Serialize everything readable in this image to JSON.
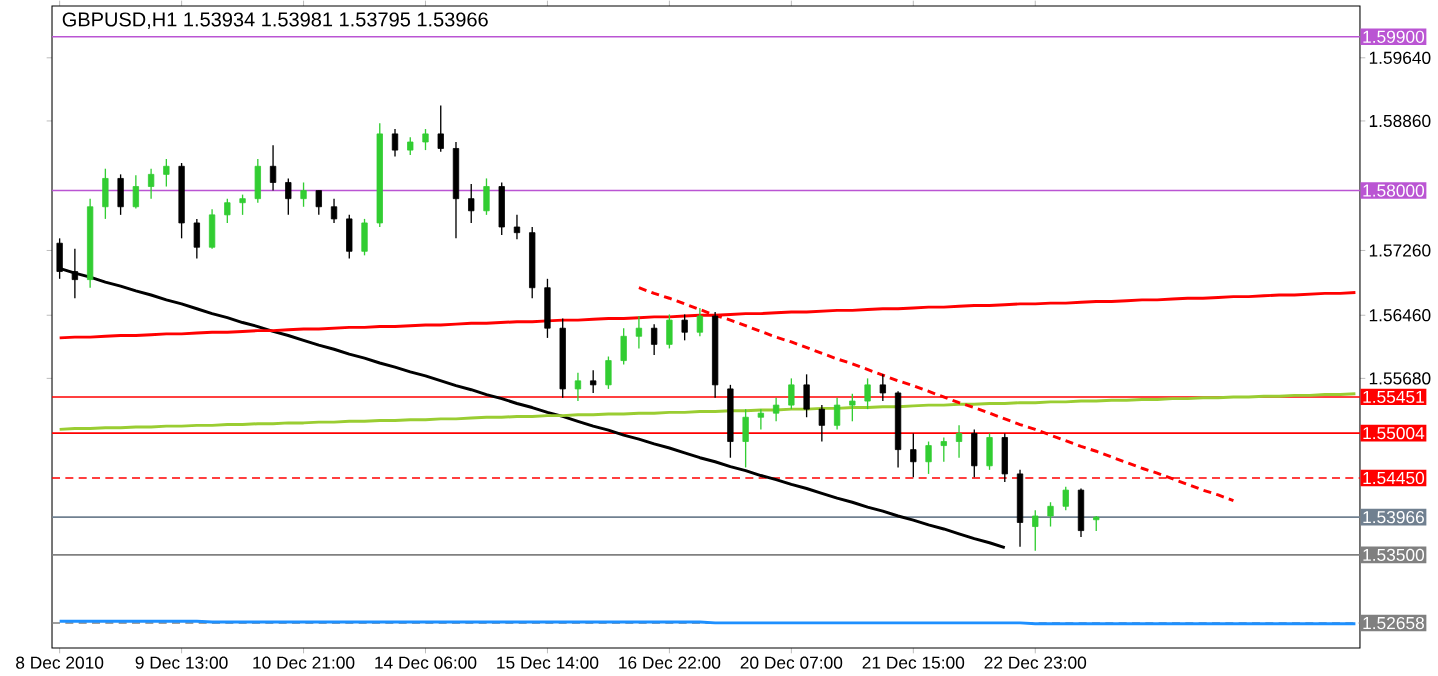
{
  "chart_data": {
    "type": "candlestick",
    "title": "GBPUSD,H1  1.53934 1.53981 1.53795 1.53966",
    "categories": [
      "8 Dec 2010",
      null,
      null,
      null,
      null,
      null,
      null,
      null,
      "9 Dec 13:00",
      null,
      null,
      null,
      null,
      null,
      null,
      null,
      "10 Dec 21:00",
      null,
      null,
      null,
      null,
      null,
      null,
      null,
      "14 Dec 06:00",
      null,
      null,
      null,
      null,
      null,
      null,
      null,
      "15 Dec 14:00",
      null,
      null,
      null,
      null,
      null,
      null,
      null,
      "16 Dec 22:00",
      null,
      null,
      null,
      null,
      null,
      null,
      null,
      "20 Dec 07:00",
      null,
      null,
      null,
      null,
      null,
      null,
      null,
      "21 Dec 15:00",
      null,
      null,
      null,
      null,
      null,
      null,
      null,
      "22 Dec 23:00",
      null,
      null,
      null,
      null,
      null,
      null,
      null,
      null,
      null,
      null,
      null,
      null,
      null,
      null,
      null,
      null,
      null,
      null,
      null,
      null,
      null
    ],
    "ohlc": [
      [
        1.5735,
        1.5741,
        1.5691,
        1.57
      ],
      [
        1.57,
        1.5728,
        1.5667,
        1.569
      ],
      [
        1.569,
        1.579,
        1.568,
        1.578
      ],
      [
        1.578,
        1.5827,
        1.5765,
        1.5815
      ],
      [
        1.5815,
        1.582,
        1.577,
        1.578
      ],
      [
        1.578,
        1.5819,
        1.5778,
        1.5805
      ],
      [
        1.5805,
        1.5827,
        1.579,
        1.582
      ],
      [
        1.582,
        1.5839,
        1.5805,
        1.583
      ],
      [
        1.583,
        1.5834,
        1.5741,
        1.576
      ],
      [
        1.576,
        1.5765,
        1.5716,
        1.573
      ],
      [
        1.573,
        1.5777,
        1.5728,
        1.577
      ],
      [
        1.577,
        1.579,
        1.576,
        1.5785
      ],
      [
        1.5785,
        1.5795,
        1.577,
        1.579
      ],
      [
        1.579,
        1.5839,
        1.5785,
        1.583
      ],
      [
        1.583,
        1.5856,
        1.58,
        1.581
      ],
      [
        1.581,
        1.5815,
        1.577,
        1.579
      ],
      [
        1.579,
        1.581,
        1.578,
        1.58
      ],
      [
        1.58,
        1.58,
        1.577,
        1.578
      ],
      [
        1.578,
        1.579,
        1.576,
        1.5765
      ],
      [
        1.5765,
        1.577,
        1.5716,
        1.5725
      ],
      [
        1.5725,
        1.5765,
        1.572,
        1.576
      ],
      [
        1.576,
        1.5883,
        1.5755,
        1.587
      ],
      [
        1.587,
        1.5876,
        1.5842,
        1.585
      ],
      [
        1.585,
        1.5866,
        1.5844,
        1.586
      ],
      [
        1.586,
        1.5876,
        1.585,
        1.587
      ],
      [
        1.587,
        1.5905,
        1.5848,
        1.5852
      ],
      [
        1.5852,
        1.586,
        1.5741,
        1.579
      ],
      [
        1.579,
        1.5808,
        1.576,
        1.5775
      ],
      [
        1.5775,
        1.5815,
        1.577,
        1.5805
      ],
      [
        1.5805,
        1.581,
        1.5745,
        1.5755
      ],
      [
        1.5755,
        1.577,
        1.574,
        1.5748
      ],
      [
        1.5748,
        1.5755,
        1.5667,
        1.568
      ],
      [
        1.568,
        1.5691,
        1.5618,
        1.563
      ],
      [
        1.563,
        1.5642,
        1.5544,
        1.5555
      ],
      [
        1.5555,
        1.5575,
        1.554,
        1.5565
      ],
      [
        1.5565,
        1.5578,
        1.555,
        1.556
      ],
      [
        1.556,
        1.5595,
        1.5555,
        1.559
      ],
      [
        1.559,
        1.563,
        1.5585,
        1.562
      ],
      [
        1.562,
        1.5645,
        1.5605,
        1.563
      ],
      [
        1.563,
        1.5635,
        1.5597,
        1.561
      ],
      [
        1.561,
        1.5647,
        1.5605,
        1.564
      ],
      [
        1.564,
        1.5647,
        1.5615,
        1.5625
      ],
      [
        1.5625,
        1.5655,
        1.562,
        1.5645
      ],
      [
        1.5645,
        1.565,
        1.5544,
        1.556
      ],
      [
        1.5555,
        1.556,
        1.547,
        1.549
      ],
      [
        1.549,
        1.553,
        1.5458,
        1.552
      ],
      [
        1.552,
        1.553,
        1.5505,
        1.5525
      ],
      [
        1.5525,
        1.5544,
        1.5515,
        1.5535
      ],
      [
        1.5535,
        1.5568,
        1.553,
        1.556
      ],
      [
        1.556,
        1.5573,
        1.552,
        1.553
      ],
      [
        1.553,
        1.5535,
        1.549,
        1.551
      ],
      [
        1.551,
        1.5544,
        1.5505,
        1.5535
      ],
      [
        1.5535,
        1.5549,
        1.5515,
        1.554
      ],
      [
        1.554,
        1.5568,
        1.553,
        1.556
      ],
      [
        1.556,
        1.5573,
        1.554,
        1.555
      ],
      [
        1.555,
        1.5552,
        1.5458,
        1.548
      ],
      [
        1.548,
        1.55,
        1.5446,
        1.5465
      ],
      [
        1.5465,
        1.549,
        1.545,
        1.5485
      ],
      [
        1.5485,
        1.5495,
        1.5465,
        1.549
      ],
      [
        1.549,
        1.551,
        1.547,
        1.55
      ],
      [
        1.55,
        1.5505,
        1.5446,
        1.546
      ],
      [
        1.546,
        1.55,
        1.5455,
        1.5495
      ],
      [
        1.5495,
        1.55,
        1.544,
        1.545
      ],
      [
        1.545,
        1.5455,
        1.536,
        1.539
      ],
      [
        1.5385,
        1.5405,
        1.5355,
        1.5398
      ],
      [
        1.5398,
        1.5415,
        1.5385,
        1.541
      ],
      [
        1.541,
        1.5434,
        1.5405,
        1.543
      ],
      [
        1.543,
        1.5432,
        1.5372,
        1.538
      ],
      [
        1.53934,
        1.53981,
        1.53795,
        1.53966
      ],
      null,
      null,
      null,
      null,
      null,
      null,
      null,
      null,
      null,
      null,
      null,
      null,
      null,
      null,
      null,
      null,
      null
    ],
    "series": [
      {
        "type": "line",
        "color": "#000000",
        "values": [
          1.5704,
          1.5698,
          1.5693,
          1.5687,
          1.5682,
          1.5676,
          1.5671,
          1.5665,
          1.566,
          1.5654,
          1.5648,
          1.5643,
          1.5637,
          1.5632,
          1.5626,
          1.5621,
          1.5615,
          1.5609,
          1.5604,
          1.5598,
          1.5593,
          1.5587,
          1.5582,
          1.5576,
          1.5571,
          1.5565,
          1.5559,
          1.5554,
          1.5548,
          1.5543,
          1.5537,
          1.5532,
          1.5526,
          1.5521,
          1.5515,
          1.5509,
          1.5504,
          1.5498,
          1.5493,
          1.5487,
          1.5482,
          1.5476,
          1.547,
          1.5465,
          1.5459,
          1.5454,
          1.5448,
          1.5443,
          1.5437,
          1.5432,
          1.5426,
          1.542,
          1.5415,
          1.5409,
          1.5404,
          1.5398,
          1.5393,
          1.5387,
          1.5382,
          1.5376,
          1.537,
          1.5365,
          1.5359,
          null,
          null,
          null,
          null,
          null,
          null,
          null,
          null,
          null,
          null,
          null,
          null,
          null,
          null,
          null,
          null,
          null,
          null,
          null,
          null,
          null,
          null,
          null
        ]
      },
      {
        "type": "line",
        "color": "#ff0000",
        "values": [
          1.5618,
          1.5619,
          1.5619,
          1.562,
          1.5621,
          1.5621,
          1.5622,
          1.5623,
          1.5623,
          1.5624,
          1.5625,
          1.5625,
          1.5626,
          1.5627,
          1.5627,
          1.5628,
          1.5629,
          1.5629,
          1.563,
          1.5631,
          1.5631,
          1.5632,
          1.5632,
          1.5633,
          1.5634,
          1.5634,
          1.5635,
          1.5636,
          1.5636,
          1.5637,
          1.5638,
          1.5638,
          1.5639,
          1.564,
          1.564,
          1.5641,
          1.5642,
          1.5642,
          1.5643,
          1.5644,
          1.5644,
          1.5645,
          1.5646,
          1.5646,
          1.5647,
          1.5648,
          1.5648,
          1.5649,
          1.565,
          1.565,
          1.5651,
          1.5652,
          1.5652,
          1.5653,
          1.5654,
          1.5654,
          1.5655,
          1.5656,
          1.5656,
          1.5657,
          1.5658,
          1.5658,
          1.5659,
          1.566,
          1.566,
          1.5661,
          1.5661,
          1.5662,
          1.5663,
          1.5663,
          1.5664,
          1.5665,
          1.5665,
          1.5666,
          1.5667,
          1.5667,
          1.5668,
          1.5669,
          1.5669,
          1.567,
          1.5671,
          1.5671,
          1.5672,
          1.5673,
          1.5673,
          1.5674
        ]
      },
      {
        "type": "line",
        "color": "#9acd32",
        "values": [
          1.5505,
          1.5506,
          1.5506,
          1.5507,
          1.5507,
          1.5508,
          1.5508,
          1.5509,
          1.5509,
          1.551,
          1.551,
          1.5511,
          1.5511,
          1.5512,
          1.5512,
          1.5513,
          1.5513,
          1.5514,
          1.5514,
          1.5515,
          1.5515,
          1.5516,
          1.5516,
          1.5517,
          1.5517,
          1.5518,
          1.5518,
          1.5519,
          1.552,
          1.552,
          1.5521,
          1.5521,
          1.5522,
          1.5522,
          1.5523,
          1.5523,
          1.5524,
          1.5524,
          1.5525,
          1.5525,
          1.5526,
          1.5526,
          1.5527,
          1.5527,
          1.5528,
          1.5528,
          1.5529,
          1.5529,
          1.553,
          1.553,
          1.5531,
          1.5531,
          1.5532,
          1.5532,
          1.5533,
          1.5533,
          1.5534,
          1.5535,
          1.5535,
          1.5536,
          1.5536,
          1.5537,
          1.5537,
          1.5538,
          1.5538,
          1.5539,
          1.5539,
          1.554,
          1.554,
          1.5541,
          1.5541,
          1.5542,
          1.5542,
          1.5543,
          1.5543,
          1.5544,
          1.5544,
          1.5545,
          1.5545,
          1.5546,
          1.5546,
          1.5547,
          1.5547,
          1.5548,
          1.5548,
          1.5549
        ]
      },
      {
        "type": "line",
        "color": "#ff0000",
        "line_style": "dashed",
        "values": [
          null,
          null,
          null,
          null,
          null,
          null,
          null,
          null,
          null,
          null,
          null,
          null,
          null,
          null,
          null,
          null,
          null,
          null,
          null,
          null,
          null,
          null,
          null,
          null,
          null,
          null,
          null,
          null,
          null,
          null,
          null,
          null,
          null,
          null,
          null,
          null,
          null,
          null,
          1.568,
          1.5673,
          1.5667,
          1.566,
          1.5653,
          1.5646,
          1.564,
          1.5633,
          1.5626,
          1.5619,
          1.5613,
          1.5606,
          1.5599,
          1.5592,
          1.5586,
          1.5579,
          1.5572,
          1.5565,
          1.5559,
          1.5552,
          1.5545,
          1.5538,
          1.5532,
          1.5525,
          1.5518,
          1.5511,
          1.5505,
          1.5498,
          1.5491,
          1.5484,
          1.5478,
          1.5471,
          1.5464,
          1.5457,
          1.5451,
          1.5444,
          1.5437,
          1.543,
          1.5424,
          1.5417,
          null,
          null,
          null,
          null,
          null,
          null,
          null,
          null
        ]
      },
      {
        "type": "line",
        "color": "#1e90ff",
        "values": [
          1.5268,
          1.5268,
          1.5268,
          1.5268,
          1.5268,
          1.5268,
          1.5268,
          1.5268,
          1.5268,
          1.5268,
          1.5267,
          1.5267,
          1.5267,
          1.5267,
          1.5267,
          1.5267,
          1.5267,
          1.5267,
          1.5267,
          1.5267,
          1.5267,
          1.5267,
          1.5267,
          1.5267,
          1.5267,
          1.5267,
          1.5267,
          1.5267,
          1.5267,
          1.5267,
          1.5267,
          1.5267,
          1.5267,
          1.5267,
          1.5267,
          1.5267,
          1.5267,
          1.5267,
          1.5267,
          1.5267,
          1.5267,
          1.5267,
          1.5267,
          1.5266,
          1.5266,
          1.5266,
          1.5266,
          1.5266,
          1.5266,
          1.5266,
          1.5266,
          1.5266,
          1.5266,
          1.5266,
          1.5266,
          1.5266,
          1.5266,
          1.5266,
          1.5266,
          1.5266,
          1.5266,
          1.5266,
          1.5266,
          1.5266,
          1.5265,
          1.5265,
          1.5265,
          1.5265,
          1.5265,
          1.5265,
          1.5265,
          1.5265,
          1.5265,
          1.5265,
          1.5265,
          1.5265,
          1.5265,
          1.5265,
          1.5265,
          1.5265,
          1.5265,
          1.5265,
          1.5265,
          1.5265,
          1.5265,
          1.5265
        ]
      }
    ],
    "ylim": [
      1.5235,
      1.6028
    ],
    "yticks": [
      {
        "value": 1.5964,
        "label": "1.59640"
      },
      {
        "value": 1.5886,
        "label": "1.58860"
      },
      {
        "value": 1.5726,
        "label": "1.57260"
      },
      {
        "value": 1.5646,
        "label": "1.56460"
      },
      {
        "value": 1.5568,
        "label": "1.55680"
      }
    ],
    "ref_lines": [
      {
        "axis": "y",
        "value": 1.599,
        "label": "1.59900",
        "color": "#ba55d3"
      },
      {
        "axis": "y",
        "value": 1.58,
        "label": "1.58000",
        "color": "#ba55d3"
      },
      {
        "axis": "y",
        "value": 1.55451,
        "label": "1.55451",
        "color": "#ff0000"
      },
      {
        "axis": "y",
        "value": 1.55004,
        "label": "1.55004",
        "color": "#ff0000"
      },
      {
        "axis": "y",
        "value": 1.5445,
        "label": "1.54450",
        "color": "#ff0000",
        "line_style": "dashed"
      },
      {
        "axis": "y",
        "value": 1.53966,
        "label": "1.53966",
        "color": "#708090"
      },
      {
        "axis": "y",
        "value": 1.535,
        "label": "1.53500",
        "color": "#808080"
      },
      {
        "axis": "y",
        "value": 1.52658,
        "label": "1.52658",
        "color": "#808080",
        "line_style": "dashed"
      }
    ]
  }
}
